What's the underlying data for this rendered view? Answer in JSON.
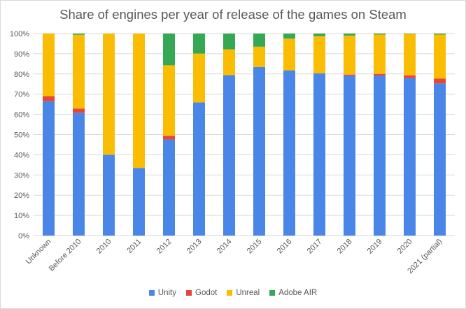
{
  "chart_data": {
    "type": "bar",
    "stacked": true,
    "title": "Share of engines per year of release of the games on Steam",
    "xlabel": "",
    "ylabel": "",
    "ylim": [
      0,
      100
    ],
    "yticks": [
      0,
      10,
      20,
      30,
      40,
      50,
      60,
      70,
      80,
      90,
      100
    ],
    "ytick_labels": [
      "0%",
      "10%",
      "20%",
      "30%",
      "40%",
      "50%",
      "60%",
      "70%",
      "80%",
      "90%",
      "100%"
    ],
    "grid": true,
    "legend_position": "bottom",
    "categories": [
      "Unknown",
      "Before 2010",
      "2010",
      "2011",
      "2012",
      "2013",
      "2014",
      "2015",
      "2016",
      "2017",
      "2018",
      "2019",
      "2020",
      "2021 (partial)"
    ],
    "series": [
      {
        "name": "Unity",
        "color": "#4a86e8",
        "values": [
          66.5,
          60.8,
          40,
          33.5,
          47.6,
          65.9,
          79.4,
          83.4,
          81.8,
          80.3,
          79.2,
          79.2,
          78,
          75.3
        ]
      },
      {
        "name": "Godot",
        "color": "#e84437",
        "values": [
          2.5,
          2,
          0,
          0,
          1.8,
          0,
          0,
          0,
          0,
          0,
          0.5,
          0.8,
          1.3,
          2.4
        ]
      },
      {
        "name": "Unreal",
        "color": "#fbbc04",
        "values": [
          31,
          36.6,
          60,
          66.5,
          34.9,
          24.2,
          12.8,
          10.1,
          15.7,
          18.4,
          19.3,
          19.5,
          20.5,
          21.8
        ]
      },
      {
        "name": "Adobe AIR",
        "color": "#34a853",
        "values": [
          0,
          0.6,
          0,
          0,
          15.7,
          9.9,
          7.8,
          6.5,
          2.5,
          1.3,
          1,
          0.5,
          0.2,
          0.5
        ]
      }
    ]
  }
}
